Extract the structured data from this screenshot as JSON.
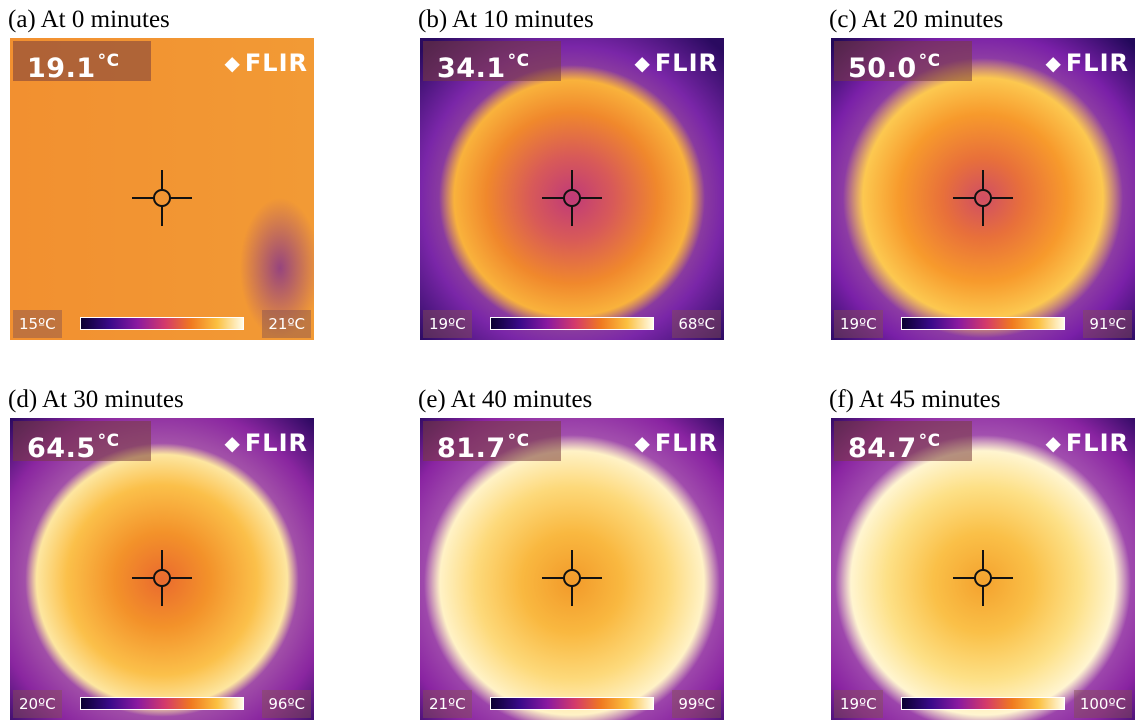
{
  "panels": [
    {
      "caption": "(a) At 0 minutes",
      "temp": "19.1",
      "unit": "°C",
      "scale_min": "15ºC",
      "scale_max": "21ºC",
      "logo": "FLIR",
      "logo_icon": "diamond-arrows-icon",
      "style": "cold"
    },
    {
      "caption": "(b) At 10 minutes",
      "temp": "34.1",
      "unit": "°C",
      "scale_min": "19ºC",
      "scale_max": "68ºC",
      "logo": "FLIR",
      "logo_icon": "diamond-arrows-icon",
      "style": "warm"
    },
    {
      "caption": "(c) At 20 minutes",
      "temp": "50.0",
      "unit": "°C",
      "scale_min": "19ºC",
      "scale_max": "91ºC",
      "logo": "FLIR",
      "logo_icon": "diamond-arrows-icon",
      "style": "warmer"
    },
    {
      "caption": "(d) At 30 minutes",
      "temp": "64.5",
      "unit": "°C",
      "scale_min": "20ºC",
      "scale_max": "96ºC",
      "logo": "FLIR",
      "logo_icon": "diamond-arrows-icon",
      "style": "hot"
    },
    {
      "caption": "(e) At 40 minutes",
      "temp": "81.7",
      "unit": "°C",
      "scale_min": "21ºC",
      "scale_max": "99ºC",
      "logo": "FLIR",
      "logo_icon": "diamond-arrows-icon",
      "style": "hotter"
    },
    {
      "caption": "(f) At 45 minutes",
      "temp": "84.7",
      "unit": "°C",
      "scale_min": "19ºC",
      "scale_max": "100ºC",
      "logo": "FLIR",
      "logo_icon": "diamond-arrows-icon",
      "style": "hottest"
    }
  ],
  "palette": {
    "ironbow_dark": "#1a0040",
    "ironbow_purple": "#6a1aa0",
    "ironbow_orange": "#f08a20",
    "ironbow_white": "#fff8e0",
    "cold_orange": "#f2962e"
  }
}
